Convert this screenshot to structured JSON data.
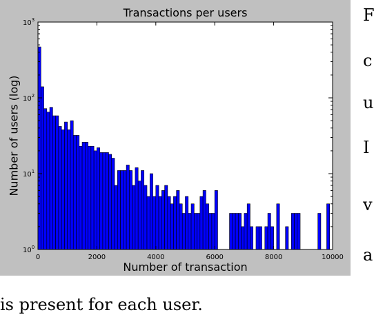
{
  "chart_data": {
    "type": "bar",
    "title": "Transactions per users",
    "xlabel": "Number of transaction",
    "ylabel": "Number of users (log)",
    "xlim": [
      0,
      10000
    ],
    "ylim": [
      1,
      1000
    ],
    "yscale": "log",
    "bin_width": 100,
    "x_ticks": [
      0,
      2000,
      4000,
      6000,
      8000,
      10000
    ],
    "x_tick_labels": [
      "0",
      "2000",
      "4000",
      "6000",
      "8000",
      "10000"
    ],
    "y_ticks": [
      1,
      10,
      100,
      1000
    ],
    "y_tick_labels": [
      {
        "base": "10",
        "exp": "0"
      },
      {
        "base": "10",
        "exp": "1"
      },
      {
        "base": "10",
        "exp": "2"
      },
      {
        "base": "10",
        "exp": "3"
      }
    ],
    "background_color": "#c0c0c0",
    "plot_color": "#ffffff",
    "bar_color": "#0000ff",
    "x": [
      0,
      100,
      200,
      300,
      400,
      500,
      600,
      700,
      800,
      900,
      1000,
      1100,
      1200,
      1300,
      1400,
      1500,
      1600,
      1700,
      1800,
      1900,
      2000,
      2100,
      2200,
      2300,
      2400,
      2500,
      2600,
      2700,
      2800,
      2900,
      3000,
      3100,
      3200,
      3300,
      3400,
      3500,
      3600,
      3700,
      3800,
      3900,
      4000,
      4100,
      4200,
      4300,
      4400,
      4500,
      4600,
      4700,
      4800,
      4900,
      5000,
      5100,
      5200,
      5300,
      5400,
      5500,
      5600,
      5700,
      5800,
      5900,
      6000,
      6100,
      6200,
      6300,
      6400,
      6500,
      6600,
      6700,
      6800,
      6900,
      7000,
      7100,
      7200,
      7300,
      7400,
      7500,
      7600,
      7700,
      7800,
      7900,
      8000,
      8100,
      8200,
      8300,
      8400,
      8500,
      8600,
      8700,
      8800,
      8900,
      9000,
      9100,
      9200,
      9300,
      9400,
      9500,
      9600,
      9700,
      9800,
      9900
    ],
    "values": [
      470,
      140,
      72,
      65,
      75,
      58,
      58,
      42,
      38,
      48,
      38,
      50,
      32,
      32,
      23,
      26,
      26,
      23,
      23,
      20,
      22,
      19,
      19,
      19,
      18,
      16,
      7,
      11,
      11,
      11,
      13,
      11,
      7,
      12,
      8,
      11,
      7,
      5,
      10,
      5,
      7,
      5,
      6,
      7,
      5,
      4,
      5,
      6,
      4,
      3,
      5,
      3,
      4,
      3,
      3,
      5,
      6,
      4,
      3,
      3,
      6,
      1,
      0,
      0,
      0,
      3,
      3,
      3,
      3,
      2,
      3,
      4,
      2,
      1,
      2,
      2,
      1,
      2,
      3,
      2,
      1,
      4,
      1,
      1,
      2,
      1,
      3,
      3,
      3,
      1,
      0,
      0,
      0,
      0,
      0,
      3,
      1,
      1,
      4,
      1
    ]
  },
  "side_text": [
    "F",
    "c",
    "u",
    "I",
    "v",
    "a"
  ],
  "caption": "is present for each user."
}
